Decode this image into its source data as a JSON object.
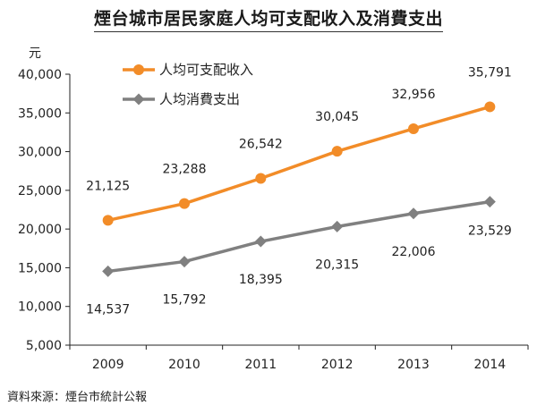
{
  "chart_data": {
    "type": "line",
    "title": "煙台城市居民家庭人均可支配收入及消費支出",
    "ylabel": "元",
    "xlabel": "",
    "categories": [
      "2009",
      "2010",
      "2011",
      "2012",
      "2013",
      "2014"
    ],
    "ylim": [
      5000,
      40000
    ],
    "yticks": [
      "5,000",
      "10,000",
      "15,000",
      "20,000",
      "25,000",
      "30,000",
      "35,000",
      "40,000"
    ],
    "ytick_values": [
      5000,
      10000,
      15000,
      20000,
      25000,
      30000,
      35000,
      40000
    ],
    "grid": false,
    "legend_position": "top-left",
    "series": [
      {
        "name": "人均可支配收入",
        "color": "#F28C28",
        "values": [
          21125,
          23288,
          26542,
          30045,
          32956,
          35791
        ],
        "labels": [
          "21,125",
          "23,288",
          "26,542",
          "30,045",
          "32,956",
          "35,791"
        ]
      },
      {
        "name": "人均消費支出",
        "color": "#808080",
        "values": [
          14537,
          15792,
          18395,
          20315,
          22006,
          23529
        ],
        "labels": [
          "14,537",
          "15,792",
          "18,395",
          "20,315",
          "22,006",
          "23,529"
        ]
      }
    ]
  },
  "source": "資料來源：煙台市統計公報"
}
